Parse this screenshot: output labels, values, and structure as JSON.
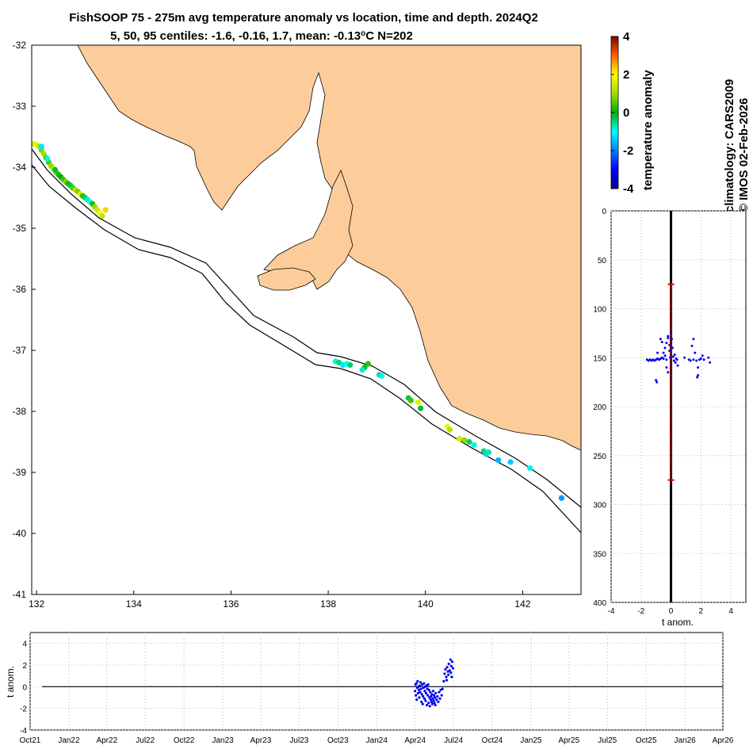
{
  "title": {
    "line1": "FishSOOP 75 - 275m avg temperature anomaly vs location, time and depth. 2024Q2",
    "line2": "5, 50, 95 centiles: -1.6, -0.16, 1.7, mean: -0.13",
    "line2_sup": "o",
    "line2_tail": "C N=202"
  },
  "side_text": {
    "line1": "climatology: CARS2009",
    "line2": "© IMOS 02-Feb-2026"
  },
  "colors": {
    "land": "#fccd9b",
    "points": "#0000ee",
    "bar": "#dd0000",
    "grid": "#b8b8c8"
  },
  "colorbar": {
    "label": "temperature anomaly",
    "ticks": [
      "-4",
      "-2",
      "0",
      "2",
      "4"
    ],
    "range": [
      -4,
      4
    ],
    "colormap": "jet"
  },
  "chart_data": [
    {
      "type": "scatter",
      "name": "map",
      "xlim": [
        131.9,
        143.2
      ],
      "ylim": [
        -41,
        -32
      ],
      "xticks": [
        132,
        134,
        136,
        138,
        140,
        142
      ],
      "yticks": [
        -32,
        -33,
        -34,
        -35,
        -36,
        -37,
        -38,
        -39,
        -40,
        -41
      ],
      "points": [
        [
          131.95,
          -33.62,
          1.5
        ],
        [
          132.0,
          -33.63,
          1.8
        ],
        [
          132.05,
          -33.66,
          1.2
        ],
        [
          132.1,
          -33.72,
          0.8
        ],
        [
          132.15,
          -33.78,
          1.0
        ],
        [
          132.2,
          -33.85,
          0.3
        ],
        [
          132.25,
          -33.92,
          0.5
        ],
        [
          132.3,
          -33.98,
          0.9
        ],
        [
          132.35,
          -34.03,
          1.4
        ],
        [
          132.4,
          -34.08,
          0.6
        ],
        [
          132.45,
          -34.12,
          0.2
        ],
        [
          132.5,
          -34.16,
          0.0
        ],
        [
          132.55,
          -34.2,
          0.4
        ],
        [
          132.6,
          -34.24,
          0.8
        ],
        [
          132.65,
          -34.27,
          0.1
        ],
        [
          132.7,
          -34.3,
          -0.3
        ],
        [
          132.75,
          -34.34,
          0.5
        ],
        [
          132.8,
          -34.37,
          1.2
        ],
        [
          132.85,
          -34.4,
          0.7
        ],
        [
          132.9,
          -34.44,
          1.6
        ],
        [
          132.95,
          -34.47,
          0.3
        ],
        [
          133.0,
          -34.5,
          -0.4
        ],
        [
          133.05,
          -34.53,
          -0.8
        ],
        [
          133.1,
          -34.57,
          -1.0
        ],
        [
          133.15,
          -34.6,
          0.2
        ],
        [
          133.2,
          -34.65,
          0.9
        ],
        [
          133.25,
          -34.7,
          1.4
        ],
        [
          133.3,
          -34.75,
          1.9
        ],
        [
          133.35,
          -34.8,
          1.3
        ],
        [
          132.1,
          -33.66,
          -1.2
        ],
        [
          132.22,
          -33.86,
          -0.9
        ],
        [
          132.38,
          -34.04,
          -0.2
        ],
        [
          133.42,
          -34.7,
          2.3
        ],
        [
          138.15,
          -37.18,
          -0.9
        ],
        [
          138.22,
          -37.2,
          -0.5
        ],
        [
          138.3,
          -37.24,
          -1.2
        ],
        [
          138.38,
          -37.22,
          -1.0
        ],
        [
          138.45,
          -37.24,
          -0.4
        ],
        [
          138.75,
          -37.28,
          -0.2
        ],
        [
          138.82,
          -37.22,
          0.3
        ],
        [
          138.7,
          -37.32,
          -0.8
        ],
        [
          139.05,
          -37.4,
          -0.6
        ],
        [
          139.1,
          -37.42,
          -1.1
        ],
        [
          139.65,
          -37.78,
          -0.3
        ],
        [
          139.7,
          -37.82,
          0.4
        ],
        [
          139.85,
          -37.85,
          1.6
        ],
        [
          139.9,
          -37.95,
          -0.2
        ],
        [
          140.45,
          -38.25,
          1.8
        ],
        [
          140.5,
          -38.3,
          1.2
        ],
        [
          140.7,
          -38.45,
          1.5
        ],
        [
          140.8,
          -38.47,
          0.9
        ],
        [
          140.9,
          -38.5,
          -0.4
        ],
        [
          141.0,
          -38.55,
          -0.9
        ],
        [
          141.2,
          -38.65,
          -0.5
        ],
        [
          141.25,
          -38.7,
          -1.3
        ],
        [
          141.3,
          -38.67,
          -0.7
        ],
        [
          141.5,
          -38.8,
          -1.6
        ],
        [
          141.75,
          -38.83,
          -1.4
        ],
        [
          142.15,
          -38.93,
          -1.1
        ],
        [
          142.8,
          -39.42,
          -1.8
        ]
      ]
    },
    {
      "type": "scatter",
      "name": "depth-profile",
      "xlabel": "t anom.",
      "xlim": [
        -4,
        5
      ],
      "ylim": [
        0,
        400
      ],
      "xticks": [
        "-4",
        "-2",
        "0",
        "2",
        "4"
      ],
      "yticks": [
        "0",
        "50",
        "100",
        "150",
        "200",
        "250",
        "300",
        "350",
        "400"
      ],
      "depth_range_bar": [
        75,
        275
      ],
      "points": [
        [
          -1.6,
          152
        ],
        [
          -1.5,
          153
        ],
        [
          -1.4,
          152
        ],
        [
          -1.3,
          153
        ],
        [
          -1.2,
          152
        ],
        [
          -1.1,
          153
        ],
        [
          -1.0,
          152
        ],
        [
          -0.9,
          151
        ],
        [
          -0.8,
          152
        ],
        [
          -0.7,
          151
        ],
        [
          -0.6,
          150
        ],
        [
          -0.5,
          151
        ],
        [
          -0.5,
          145
        ],
        [
          -0.4,
          140
        ],
        [
          -0.4,
          148
        ],
        [
          -0.3,
          135
        ],
        [
          -0.3,
          152
        ],
        [
          -0.2,
          130
        ],
        [
          -0.2,
          128
        ],
        [
          -0.1,
          137
        ],
        [
          -0.1,
          143
        ],
        [
          -0.05,
          150
        ],
        [
          0.0,
          125
        ],
        [
          0.05,
          131
        ],
        [
          0.1,
          140
        ],
        [
          0.15,
          149
        ],
        [
          0.2,
          153
        ],
        [
          0.25,
          147
        ],
        [
          0.3,
          155
        ],
        [
          0.35,
          151
        ],
        [
          0.4,
          152
        ],
        [
          0.45,
          158
        ],
        [
          -0.7,
          131
        ],
        [
          -0.6,
          134
        ],
        [
          -0.9,
          145
        ],
        [
          -1.0,
          173
        ],
        [
          -0.95,
          175
        ],
        [
          -0.3,
          160
        ],
        [
          -0.2,
          165
        ],
        [
          1.4,
          138
        ],
        [
          1.6,
          145
        ],
        [
          1.5,
          152
        ],
        [
          1.7,
          153
        ],
        [
          1.8,
          160
        ],
        [
          1.9,
          152
        ],
        [
          2.0,
          151
        ],
        [
          2.1,
          148
        ],
        [
          2.2,
          152
        ],
        [
          2.5,
          150
        ],
        [
          2.6,
          155
        ],
        [
          1.75,
          170
        ],
        [
          1.8,
          168
        ],
        [
          1.5,
          131
        ],
        [
          1.2,
          152
        ],
        [
          1.3,
          153
        ],
        [
          0.9,
          150
        ]
      ]
    },
    {
      "type": "scatter",
      "name": "time-series",
      "ylabel": "t anom.",
      "xlim": [
        "Oct21",
        "Apr26"
      ],
      "ylim": [
        -4,
        5
      ],
      "yticks": [
        "4",
        "2",
        "0",
        "-2",
        "-4"
      ],
      "xticks": [
        "Oct21",
        "Jan22",
        "Apr22",
        "Jul22",
        "Oct22",
        "Jan23",
        "Apr23",
        "Jul23",
        "Oct23",
        "Jan24",
        "Apr24",
        "Jul24",
        "Oct24",
        "Jan25",
        "Apr25",
        "Jul25",
        "Oct25",
        "Jan26",
        "Apr26"
      ],
      "points": [
        [
          "2024-04-01",
          -0.4
        ],
        [
          "2024-04-02",
          0.2
        ],
        [
          "2024-04-03",
          -0.8
        ],
        [
          "2024-04-04",
          0.3
        ],
        [
          "2024-04-05",
          -1.2
        ],
        [
          "2024-04-06",
          -0.1
        ],
        [
          "2024-04-07",
          0.5
        ],
        [
          "2024-04-08",
          -0.6
        ],
        [
          "2024-04-09",
          0.0
        ],
        [
          "2024-04-10",
          -0.3
        ],
        [
          "2024-04-11",
          -1.0
        ],
        [
          "2024-04-12",
          0.1
        ],
        [
          "2024-04-13",
          -0.5
        ],
        [
          "2024-04-14",
          0.4
        ],
        [
          "2024-04-15",
          -0.2
        ],
        [
          "2024-04-16",
          -1.4
        ],
        [
          "2024-04-17",
          -0.7
        ],
        [
          "2024-04-18",
          0.2
        ],
        [
          "2024-04-19",
          -1.6
        ],
        [
          "2024-04-20",
          -0.9
        ],
        [
          "2024-04-21",
          -0.1
        ],
        [
          "2024-04-22",
          0.3
        ],
        [
          "2024-04-23",
          -1.1
        ],
        [
          "2024-04-24",
          -0.4
        ],
        [
          "2024-04-25",
          0.0
        ],
        [
          "2024-04-26",
          -1.3
        ],
        [
          "2024-04-27",
          -0.6
        ],
        [
          "2024-04-28",
          0.1
        ],
        [
          "2024-04-29",
          -1.7
        ],
        [
          "2024-04-30",
          -0.2
        ],
        [
          "2024-05-01",
          -0.8
        ],
        [
          "2024-05-02",
          0.2
        ],
        [
          "2024-05-03",
          -1.5
        ],
        [
          "2024-05-04",
          -0.3
        ],
        [
          "2024-05-05",
          -1.0
        ],
        [
          "2024-05-06",
          -1.8
        ],
        [
          "2024-05-07",
          -0.5
        ],
        [
          "2024-05-08",
          -1.2
        ],
        [
          "2024-05-09",
          -0.9
        ],
        [
          "2024-05-10",
          -1.4
        ],
        [
          "2024-05-11",
          -0.7
        ],
        [
          "2024-05-12",
          -1.6
        ],
        [
          "2024-05-13",
          -1.1
        ],
        [
          "2024-05-14",
          -0.4
        ],
        [
          "2024-05-15",
          -1.3
        ],
        [
          "2024-05-16",
          -0.8
        ],
        [
          "2024-05-17",
          -1.5
        ],
        [
          "2024-05-18",
          -1.0
        ],
        [
          "2024-05-19",
          -1.7
        ],
        [
          "2024-05-20",
          -0.6
        ],
        [
          "2024-05-22",
          -1.2
        ],
        [
          "2024-05-24",
          -0.9
        ],
        [
          "2024-05-26",
          -1.4
        ],
        [
          "2024-05-28",
          -0.5
        ],
        [
          "2024-05-30",
          -1.1
        ],
        [
          "2024-06-01",
          -0.3
        ],
        [
          "2024-06-03",
          -0.8
        ],
        [
          "2024-06-05",
          -0.2
        ],
        [
          "2024-06-08",
          0.5
        ],
        [
          "2024-06-10",
          1.2
        ],
        [
          "2024-06-12",
          1.6
        ],
        [
          "2024-06-14",
          0.9
        ],
        [
          "2024-06-16",
          1.8
        ],
        [
          "2024-06-18",
          1.4
        ],
        [
          "2024-06-20",
          2.1
        ],
        [
          "2024-06-22",
          1.5
        ],
        [
          "2024-06-24",
          2.5
        ],
        [
          "2024-06-26",
          1.9
        ],
        [
          "2024-06-28",
          2.3
        ],
        [
          "2024-06-30",
          1.7
        ],
        [
          "2024-06-15",
          0.6
        ],
        [
          "2024-06-19",
          1.1
        ],
        [
          "2024-06-25",
          1.3
        ],
        [
          "2024-06-27",
          0.9
        ]
      ]
    }
  ]
}
